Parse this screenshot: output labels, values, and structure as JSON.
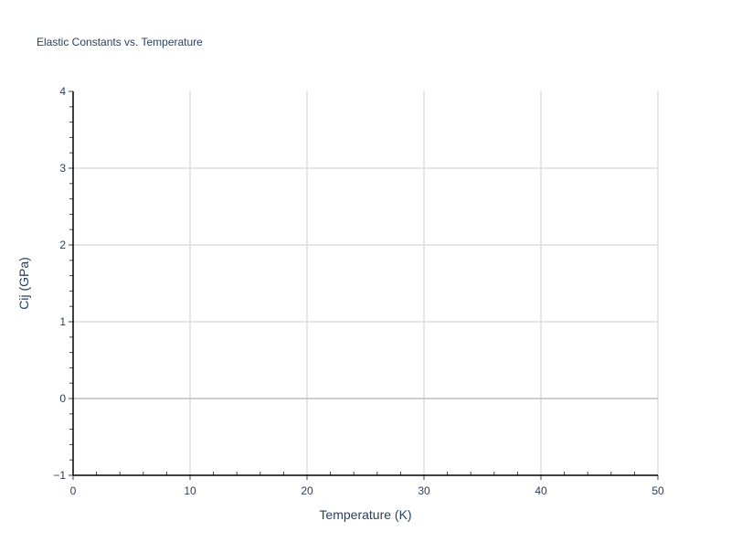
{
  "chart_data": {
    "type": "line",
    "title": "Elastic Constants vs. Temperature",
    "xlabel": "Temperature (K)",
    "ylabel": "Cij (GPa)",
    "xlim": [
      0,
      50
    ],
    "ylim": [
      -1,
      4
    ],
    "x_ticks": [
      "0",
      "10",
      "20",
      "30",
      "40",
      "50"
    ],
    "y_ticks": [
      "−1",
      "0",
      "1",
      "2",
      "3",
      "4"
    ],
    "grid": true,
    "series": []
  }
}
